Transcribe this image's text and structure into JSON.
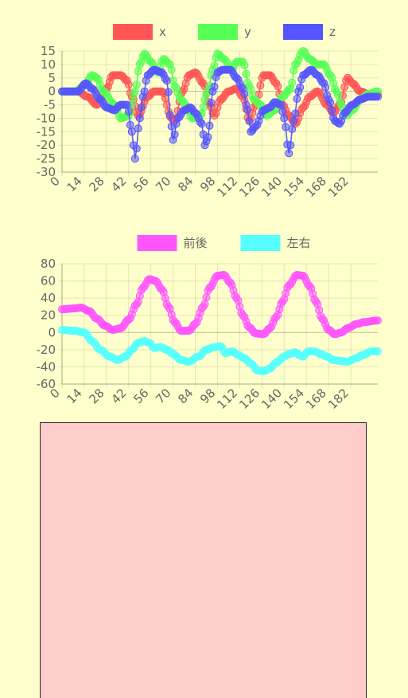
{
  "canvas_color": "#ffcccc",
  "chart_data": [
    {
      "type": "line",
      "x": {
        "start": 0,
        "end": 199,
        "step": 1
      },
      "xticks": [
        0,
        14,
        28,
        42,
        56,
        70,
        84,
        98,
        112,
        126,
        140,
        154,
        168,
        182
      ],
      "yticks": [
        15,
        10,
        5,
        0,
        -5,
        -10,
        -15,
        -20,
        -25,
        -30
      ],
      "ylim": [
        -30,
        15
      ],
      "legend_position": "top-center",
      "grid": true,
      "series": [
        {
          "name": "x",
          "color": "#ff5555",
          "keyframes": [
            [
              0,
              0
            ],
            [
              10,
              0
            ],
            [
              16,
              -2
            ],
            [
              22,
              -5
            ],
            [
              28,
              1
            ],
            [
              32,
              6
            ],
            [
              37,
              6
            ],
            [
              41,
              4
            ],
            [
              44,
              -2
            ],
            [
              48,
              -9
            ],
            [
              54,
              -2
            ],
            [
              58,
              0
            ],
            [
              63,
              0
            ],
            [
              69,
              -10
            ],
            [
              71,
              -11
            ],
            [
              76,
              0
            ],
            [
              80,
              6
            ],
            [
              84,
              7
            ],
            [
              89,
              3
            ],
            [
              93,
              -5
            ],
            [
              96,
              -9
            ],
            [
              100,
              -3
            ],
            [
              105,
              0
            ],
            [
              110,
              1
            ],
            [
              114,
              -2
            ],
            [
              118,
              -11
            ],
            [
              122,
              -5
            ],
            [
              127,
              6
            ],
            [
              131,
              6
            ],
            [
              135,
              3
            ],
            [
              139,
              -5
            ],
            [
              143,
              -9
            ],
            [
              147,
              -12
            ],
            [
              152,
              -6
            ],
            [
              156,
              -2
            ],
            [
              161,
              0
            ],
            [
              167,
              -5
            ],
            [
              171,
              -8
            ],
            [
              175,
              -5
            ],
            [
              180,
              5
            ],
            [
              183,
              3
            ],
            [
              188,
              0
            ],
            [
              193,
              -1
            ],
            [
              199,
              -1
            ]
          ]
        },
        {
          "name": "y",
          "color": "#55ff55",
          "keyframes": [
            [
              0,
              0
            ],
            [
              8,
              0
            ],
            [
              14,
              2
            ],
            [
              19,
              6
            ],
            [
              22,
              5
            ],
            [
              26,
              0
            ],
            [
              33,
              -5
            ],
            [
              37,
              -10
            ],
            [
              42,
              -9
            ],
            [
              46,
              0
            ],
            [
              49,
              10
            ],
            [
              52,
              14
            ],
            [
              56,
              11
            ],
            [
              60,
              7
            ],
            [
              64,
              12
            ],
            [
              68,
              10
            ],
            [
              71,
              2
            ],
            [
              75,
              -3
            ],
            [
              78,
              -5
            ],
            [
              82,
              -10
            ],
            [
              87,
              -9
            ],
            [
              92,
              0
            ],
            [
              95,
              8
            ],
            [
              98,
              14
            ],
            [
              102,
              12
            ],
            [
              107,
              8
            ],
            [
              110,
              11
            ],
            [
              114,
              11
            ],
            [
              118,
              2
            ],
            [
              121,
              -3
            ],
            [
              125,
              -5
            ],
            [
              129,
              -9
            ],
            [
              134,
              -7
            ],
            [
              139,
              -2
            ],
            [
              144,
              1
            ],
            [
              147,
              10
            ],
            [
              152,
              15
            ],
            [
              156,
              12
            ],
            [
              161,
              10
            ],
            [
              165,
              10
            ],
            [
              169,
              6
            ],
            [
              173,
              0
            ],
            [
              176,
              -5
            ],
            [
              179,
              -9
            ],
            [
              183,
              -7
            ],
            [
              188,
              -3
            ],
            [
              193,
              -1
            ],
            [
              199,
              0
            ]
          ]
        },
        {
          "name": "z",
          "color": "#5555ff",
          "keyframes": [
            [
              0,
              0
            ],
            [
              10,
              0
            ],
            [
              15,
              3
            ],
            [
              19,
              1
            ],
            [
              24,
              -3
            ],
            [
              28,
              -6
            ],
            [
              33,
              -7
            ],
            [
              37,
              -5
            ],
            [
              41,
              -5
            ],
            [
              44,
              -15
            ],
            [
              46,
              -25
            ],
            [
              49,
              -10
            ],
            [
              51,
              -2
            ],
            [
              54,
              6
            ],
            [
              58,
              8
            ],
            [
              63,
              7
            ],
            [
              66,
              4
            ],
            [
              69,
              -13
            ],
            [
              70,
              -18
            ],
            [
              73,
              -10
            ],
            [
              77,
              -7
            ],
            [
              81,
              -6
            ],
            [
              84,
              -8
            ],
            [
              88,
              -12
            ],
            [
              90,
              -20
            ],
            [
              92,
              -17
            ],
            [
              95,
              0
            ],
            [
              98,
              7
            ],
            [
              101,
              8
            ],
            [
              106,
              8
            ],
            [
              110,
              5
            ],
            [
              114,
              1
            ],
            [
              117,
              -7
            ],
            [
              119,
              -15
            ],
            [
              122,
              -13
            ],
            [
              127,
              -7
            ],
            [
              131,
              -6
            ],
            [
              134,
              -4
            ],
            [
              138,
              -5
            ],
            [
              140,
              -10
            ],
            [
              143,
              -23
            ],
            [
              146,
              -11
            ],
            [
              149,
              0
            ],
            [
              152,
              6
            ],
            [
              157,
              8
            ],
            [
              161,
              6
            ],
            [
              165,
              3
            ],
            [
              168,
              -3
            ],
            [
              172,
              -11
            ],
            [
              175,
              -12
            ],
            [
              178,
              -8
            ],
            [
              183,
              -5
            ],
            [
              188,
              -3
            ],
            [
              193,
              -2
            ],
            [
              199,
              -2
            ]
          ]
        }
      ]
    },
    {
      "type": "line",
      "x": {
        "start": 0,
        "end": 199,
        "step": 1
      },
      "xticks": [
        0,
        14,
        28,
        42,
        56,
        70,
        84,
        98,
        112,
        126,
        140,
        154,
        168,
        182
      ],
      "yticks": [
        80,
        60,
        40,
        20,
        0,
        -20,
        -40,
        -60
      ],
      "ylim": [
        -60,
        80
      ],
      "legend_position": "top-center",
      "grid": true,
      "series": [
        {
          "name": "前後",
          "color": "#ff55ff",
          "keyframes": [
            [
              0,
              27
            ],
            [
              8,
              28
            ],
            [
              12,
              29
            ],
            [
              17,
              25
            ],
            [
              22,
              16
            ],
            [
              27,
              8
            ],
            [
              32,
              3
            ],
            [
              37,
              5
            ],
            [
              42,
              15
            ],
            [
              47,
              33
            ],
            [
              51,
              52
            ],
            [
              55,
              62
            ],
            [
              59,
              60
            ],
            [
              63,
              50
            ],
            [
              67,
              30
            ],
            [
              71,
              12
            ],
            [
              75,
              2
            ],
            [
              80,
              2
            ],
            [
              84,
              10
            ],
            [
              89,
              30
            ],
            [
              93,
              52
            ],
            [
              98,
              66
            ],
            [
              102,
              67
            ],
            [
              106,
              58
            ],
            [
              110,
              40
            ],
            [
              114,
              20
            ],
            [
              118,
              6
            ],
            [
              122,
              -1
            ],
            [
              127,
              -2
            ],
            [
              131,
              5
            ],
            [
              135,
              18
            ],
            [
              139,
              36
            ],
            [
              143,
              55
            ],
            [
              148,
              67
            ],
            [
              152,
              66
            ],
            [
              156,
              54
            ],
            [
              160,
              36
            ],
            [
              164,
              16
            ],
            [
              168,
              3
            ],
            [
              172,
              -2
            ],
            [
              176,
              0
            ],
            [
              180,
              5
            ],
            [
              186,
              10
            ],
            [
              190,
              12
            ],
            [
              199,
              14
            ]
          ]
        },
        {
          "name": "左右",
          "color": "#55ffff",
          "keyframes": [
            [
              0,
              3
            ],
            [
              8,
              2
            ],
            [
              14,
              0
            ],
            [
              19,
              -10
            ],
            [
              24,
              -20
            ],
            [
              30,
              -28
            ],
            [
              35,
              -32
            ],
            [
              40,
              -28
            ],
            [
              44,
              -20
            ],
            [
              48,
              -12
            ],
            [
              52,
              -10
            ],
            [
              55,
              -12
            ],
            [
              58,
              -18
            ],
            [
              62,
              -17
            ],
            [
              66,
              -20
            ],
            [
              70,
              -25
            ],
            [
              75,
              -32
            ],
            [
              80,
              -34
            ],
            [
              86,
              -28
            ],
            [
              91,
              -20
            ],
            [
              96,
              -17
            ],
            [
              100,
              -16
            ],
            [
              103,
              -24
            ],
            [
              107,
              -22
            ],
            [
              111,
              -26
            ],
            [
              115,
              -30
            ],
            [
              119,
              -36
            ],
            [
              123,
              -44
            ],
            [
              127,
              -45
            ],
            [
              131,
              -42
            ],
            [
              135,
              -35
            ],
            [
              140,
              -28
            ],
            [
              143,
              -25
            ],
            [
              147,
              -23
            ],
            [
              150,
              -27
            ],
            [
              152,
              -28
            ],
            [
              155,
              -22
            ],
            [
              159,
              -22
            ],
            [
              163,
              -25
            ],
            [
              167,
              -28
            ],
            [
              171,
              -32
            ],
            [
              175,
              -33
            ],
            [
              180,
              -34
            ],
            [
              185,
              -30
            ],
            [
              190,
              -26
            ],
            [
              195,
              -22
            ],
            [
              199,
              -22
            ]
          ]
        }
      ]
    }
  ]
}
